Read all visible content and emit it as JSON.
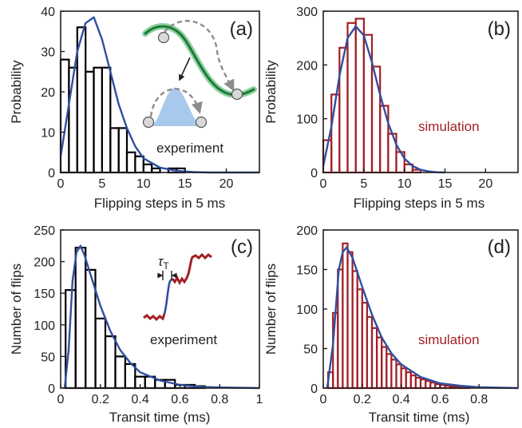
{
  "colors": {
    "axis": "#231f20",
    "fit": "#2f4fa2",
    "experiment_bars": "#000000",
    "simulation_bars": "#a31f24",
    "inset_well": "#1b7a3a",
    "inset_glow": "#8fd19e",
    "inset_barrier": "#a9c9ec",
    "inset_ball": "#d9d9d9",
    "inset_arrow": "#8c8c8c",
    "trace": "#a31f24",
    "trace_transit": "#2f4fa2"
  },
  "chart_data": [
    {
      "id": "a",
      "type": "bar",
      "panel_label": "(a)",
      "annotation": "experiment",
      "annotation_color": "#231f20",
      "bar_color": "#000000",
      "xlabel": "Flipping steps in 5 ms",
      "ylabel": "Probability",
      "xlim": [
        0,
        24
      ],
      "ylim": [
        0,
        40
      ],
      "xticks": [
        0,
        5,
        10,
        15,
        20
      ],
      "yticks": [
        0,
        10,
        20,
        30,
        40
      ],
      "bin_width": 1,
      "bin_starts": [
        0,
        1,
        2,
        3,
        4,
        5,
        6,
        7,
        8,
        9,
        10,
        11,
        12,
        13,
        14,
        15
      ],
      "values": [
        28,
        26,
        36,
        25,
        26,
        26,
        11,
        11,
        5,
        4,
        2,
        1,
        0,
        1,
        1,
        0
      ],
      "fit": {
        "x": [
          0,
          1,
          2,
          3,
          4,
          5,
          6,
          7,
          8,
          9,
          10,
          12,
          14,
          16,
          18,
          20,
          24
        ],
        "y": [
          4,
          17,
          30,
          37,
          38.5,
          33,
          25,
          17,
          11,
          6.5,
          3.5,
          1.2,
          0.4,
          0.1,
          0,
          0,
          0
        ]
      },
      "inset": "double-well"
    },
    {
      "id": "b",
      "type": "bar",
      "panel_label": "(b)",
      "annotation": "simulation",
      "annotation_color": "#a31f24",
      "bar_color": "#a31f24",
      "xlabel": "Flipping steps in 5 ms",
      "ylabel": "Probability",
      "xlim": [
        0,
        24
      ],
      "ylim": [
        0,
        300
      ],
      "xticks": [
        0,
        5,
        10,
        15,
        20
      ],
      "yticks": [
        0,
        100,
        200,
        300
      ],
      "bin_width": 1,
      "bin_starts": [
        0,
        1,
        2,
        3,
        4,
        5,
        6,
        7,
        8,
        9,
        10,
        11
      ],
      "values": [
        60,
        145,
        232,
        278,
        286,
        256,
        197,
        124,
        72,
        38,
        15,
        5
      ],
      "fit": {
        "x": [
          0,
          1,
          2,
          3,
          4,
          5,
          6,
          7,
          8,
          9,
          10,
          11,
          12,
          13,
          14,
          15
        ],
        "y": [
          12,
          85,
          180,
          250,
          272,
          255,
          205,
          145,
          92,
          52,
          26,
          12,
          5,
          2,
          0.5,
          0
        ]
      }
    },
    {
      "id": "c",
      "type": "bar",
      "panel_label": "(c)",
      "annotation": "experiment",
      "annotation_color": "#231f20",
      "bar_color": "#000000",
      "xlabel": "Transit time (ms)",
      "ylabel": "Number of flips",
      "xlim": [
        0,
        1
      ],
      "ylim": [
        0,
        250
      ],
      "xticks": [
        0,
        0.2,
        0.4,
        0.6,
        0.8,
        1
      ],
      "tick_labels": [
        "0",
        "0.2",
        "0.4",
        "0.6",
        "0.8",
        "1"
      ],
      "yticks": [
        0,
        50,
        100,
        150,
        200,
        250
      ],
      "bin_width": 0.05,
      "bin_starts": [
        0.025,
        0.075,
        0.125,
        0.175,
        0.225,
        0.275,
        0.325,
        0.375,
        0.425,
        0.475,
        0.525,
        0.575,
        0.625,
        0.675
      ],
      "values": [
        155,
        222,
        187,
        110,
        82,
        50,
        38,
        18,
        18,
        13,
        13,
        5,
        5,
        3
      ],
      "fit": {
        "x": [
          0.02,
          0.04,
          0.06,
          0.08,
          0.1,
          0.12,
          0.15,
          0.2,
          0.25,
          0.3,
          0.35,
          0.4,
          0.5,
          0.6,
          0.7,
          0.8,
          1
        ],
        "y": [
          0,
          60,
          170,
          215,
          225,
          210,
          180,
          130,
          90,
          60,
          40,
          25,
          12,
          5,
          2,
          1,
          0
        ]
      },
      "inset": "trace",
      "inset_symbol": "τ",
      "inset_subscript": "T"
    },
    {
      "id": "d",
      "type": "bar",
      "panel_label": "(d)",
      "annotation": "simulation",
      "annotation_color": "#a31f24",
      "bar_color": "#a31f24",
      "xlabel": "Transit time (ms)",
      "ylabel": "Number of flips",
      "xlim": [
        0,
        1
      ],
      "ylim": [
        0,
        200
      ],
      "xticks": [
        0,
        0.2,
        0.4,
        0.6,
        0.8
      ],
      "tick_labels": [
        "0",
        "0.2",
        "0.4",
        "0.6",
        "0.8"
      ],
      "yticks": [
        0,
        50,
        100,
        150,
        200
      ],
      "bin_width": 0.025,
      "bin_starts": [
        0.025,
        0.05,
        0.075,
        0.1,
        0.125,
        0.15,
        0.175,
        0.2,
        0.225,
        0.25,
        0.275,
        0.3,
        0.325,
        0.35,
        0.375,
        0.4,
        0.425,
        0.45,
        0.475,
        0.5,
        0.525,
        0.55,
        0.575,
        0.6,
        0.625,
        0.65,
        0.675,
        0.7,
        0.725
      ],
      "values": [
        20,
        95,
        150,
        183,
        172,
        148,
        125,
        108,
        90,
        76,
        64,
        52,
        43,
        36,
        30,
        25,
        20,
        16,
        13,
        11,
        9,
        7,
        5,
        4,
        3,
        2,
        2,
        1,
        1
      ],
      "fit": {
        "x": [
          0.02,
          0.05,
          0.08,
          0.1,
          0.12,
          0.15,
          0.2,
          0.25,
          0.3,
          0.35,
          0.4,
          0.5,
          0.6,
          0.7,
          0.8,
          0.9,
          1
        ],
        "y": [
          0,
          55,
          150,
          172,
          178,
          165,
          128,
          93,
          64,
          44,
          30,
          14,
          6,
          3,
          1,
          0.5,
          0
        ]
      }
    }
  ]
}
